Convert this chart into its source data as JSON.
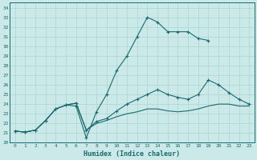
{
  "xlabel": "Humidex (Indice chaleur)",
  "ylabel": "",
  "xlim": [
    -0.5,
    23.5
  ],
  "ylim": [
    20,
    34.5
  ],
  "xticks": [
    0,
    1,
    2,
    3,
    4,
    5,
    6,
    7,
    8,
    9,
    10,
    11,
    12,
    13,
    14,
    15,
    16,
    17,
    18,
    19,
    20,
    21,
    22,
    23
  ],
  "yticks": [
    20,
    21,
    22,
    23,
    24,
    25,
    26,
    27,
    28,
    29,
    30,
    31,
    32,
    33,
    34
  ],
  "bg_color": "#cce9e9",
  "line_color": "#1a6b6b",
  "grid_color": "#aad4d4",
  "lines": [
    {
      "x": [
        0,
        1,
        2,
        3,
        4,
        5,
        6,
        7,
        8,
        9,
        10,
        11,
        12,
        13,
        14,
        15,
        16,
        17,
        18,
        19
      ],
      "y": [
        21.2,
        21.1,
        21.3,
        22.3,
        23.5,
        23.9,
        23.8,
        20.5,
        23.2,
        25.0,
        27.5,
        29.0,
        31.0,
        33.0,
        32.5,
        31.5,
        31.5,
        31.5,
        30.8,
        30.6
      ],
      "marker": true,
      "linestyle": "-"
    },
    {
      "x": [
        0,
        1,
        2,
        3,
        4,
        5,
        6,
        7,
        8,
        9,
        10,
        11,
        12,
        13,
        14,
        15,
        16,
        17,
        18,
        19,
        20,
        21,
        22,
        23
      ],
      "y": [
        21.2,
        21.1,
        21.3,
        22.3,
        23.5,
        23.9,
        24.1,
        21.3,
        22.2,
        22.5,
        23.3,
        24.0,
        24.5,
        25.0,
        25.5,
        25.0,
        24.7,
        24.5,
        25.0,
        26.5,
        26.0,
        25.2,
        24.5,
        24.0
      ],
      "marker": true,
      "linestyle": "-"
    },
    {
      "x": [
        0,
        1,
        2,
        3,
        4,
        5,
        6,
        7,
        8,
        9,
        10,
        11,
        12,
        13,
        14,
        15,
        16,
        17,
        18,
        19,
        20,
        21,
        22,
        23
      ],
      "y": [
        21.2,
        21.1,
        21.3,
        22.3,
        23.5,
        23.9,
        24.1,
        21.3,
        22.0,
        22.3,
        22.7,
        23.0,
        23.2,
        23.5,
        23.5,
        23.3,
        23.2,
        23.3,
        23.5,
        23.8,
        24.0,
        24.0,
        23.8,
        23.8
      ],
      "marker": false,
      "linestyle": "-"
    }
  ]
}
